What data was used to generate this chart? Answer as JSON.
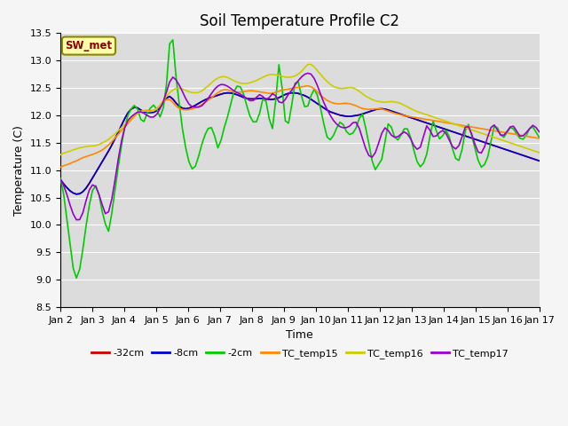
{
  "title": "Soil Temperature Profile C2",
  "xlabel": "Time",
  "ylabel": "Temperature (C)",
  "ylim": [
    8.5,
    13.5
  ],
  "xlim": [
    0,
    15
  ],
  "x_tick_labels": [
    "Jan 2",
    "Jan 3",
    "Jan 4",
    "Jan 5",
    "Jan 6",
    "Jan 7",
    "Jan 8",
    "Jan 9",
    "Jan 10",
    "Jan 11",
    "Jan 12",
    "Jan 13",
    "Jan 14",
    "Jan 15",
    "Jan 16",
    "Jan 17"
  ],
  "yticks": [
    8.5,
    9.0,
    9.5,
    10.0,
    10.5,
    11.0,
    11.5,
    12.0,
    12.5,
    13.0,
    13.5
  ],
  "legend_label": "SW_met",
  "series": {
    "neg32cm": {
      "color": "#cc0000",
      "label": "-32cm",
      "y": [
        10.83,
        10.75,
        10.68,
        10.62,
        10.58,
        10.56,
        10.57,
        10.61,
        10.68,
        10.77,
        10.87,
        10.97,
        11.07,
        11.17,
        11.27,
        11.37,
        11.48,
        11.6,
        11.72,
        11.85,
        11.97,
        12.07,
        12.13,
        12.15,
        12.13,
        12.08,
        12.06,
        12.05,
        12.05,
        12.06,
        12.1,
        12.18,
        12.27,
        12.35,
        12.34,
        12.26,
        12.19,
        12.14,
        12.12,
        12.12,
        12.14,
        12.17,
        12.2,
        12.24,
        12.27,
        12.3,
        12.32,
        12.34,
        12.36,
        12.38,
        12.4,
        12.41,
        12.41,
        12.4,
        12.38,
        12.36,
        12.33,
        12.31,
        12.3,
        12.3,
        12.3,
        12.31,
        12.31,
        12.3,
        12.29,
        12.29,
        12.3,
        12.32,
        12.35,
        12.38,
        12.4,
        12.41,
        12.41,
        12.4,
        12.38,
        12.36,
        12.33,
        12.29,
        12.25,
        12.21,
        12.17,
        12.13,
        12.09,
        12.06,
        12.04,
        12.02,
        12.0,
        11.99,
        11.98,
        11.98,
        11.99,
        12.0,
        12.01,
        12.03,
        12.05,
        12.07,
        12.09,
        12.11,
        12.12,
        12.12,
        12.11,
        12.09,
        12.07,
        12.05,
        12.03,
        12.01,
        11.99,
        11.97,
        11.95,
        11.93,
        11.91,
        11.89,
        11.87,
        11.85,
        11.83,
        11.81,
        11.79,
        11.77,
        11.75,
        11.73,
        11.71,
        11.69,
        11.67,
        11.65,
        11.63,
        11.61,
        11.59,
        11.57,
        11.55,
        11.53,
        11.51,
        11.49,
        11.47,
        11.45,
        11.43,
        11.41,
        11.39,
        11.37,
        11.35,
        11.33,
        11.31,
        11.29,
        11.27,
        11.25,
        11.23,
        11.21,
        11.19,
        11.17
      ]
    },
    "neg8cm": {
      "color": "#0000cc",
      "label": "-8cm",
      "y": [
        10.83,
        10.75,
        10.68,
        10.62,
        10.58,
        10.56,
        10.57,
        10.61,
        10.68,
        10.77,
        10.87,
        10.97,
        11.07,
        11.17,
        11.27,
        11.37,
        11.48,
        11.6,
        11.72,
        11.85,
        11.97,
        12.07,
        12.13,
        12.15,
        12.13,
        12.08,
        12.06,
        12.05,
        12.05,
        12.06,
        12.1,
        12.18,
        12.27,
        12.35,
        12.34,
        12.26,
        12.19,
        12.14,
        12.12,
        12.12,
        12.14,
        12.17,
        12.2,
        12.24,
        12.27,
        12.3,
        12.32,
        12.34,
        12.36,
        12.38,
        12.4,
        12.41,
        12.41,
        12.4,
        12.38,
        12.36,
        12.33,
        12.31,
        12.3,
        12.3,
        12.3,
        12.31,
        12.31,
        12.3,
        12.29,
        12.29,
        12.3,
        12.32,
        12.35,
        12.38,
        12.4,
        12.41,
        12.41,
        12.4,
        12.38,
        12.36,
        12.33,
        12.29,
        12.25,
        12.21,
        12.17,
        12.13,
        12.09,
        12.06,
        12.04,
        12.02,
        12.0,
        11.99,
        11.98,
        11.98,
        11.99,
        12.0,
        12.01,
        12.03,
        12.05,
        12.07,
        12.09,
        12.11,
        12.12,
        12.12,
        12.11,
        12.09,
        12.07,
        12.05,
        12.03,
        12.01,
        11.99,
        11.97,
        11.95,
        11.93,
        11.91,
        11.89,
        11.87,
        11.85,
        11.83,
        11.81,
        11.79,
        11.77,
        11.75,
        11.73,
        11.71,
        11.69,
        11.67,
        11.65,
        11.63,
        11.61,
        11.59,
        11.57,
        11.55,
        11.53,
        11.51,
        11.49,
        11.47,
        11.45,
        11.43,
        11.41,
        11.39,
        11.37,
        11.35,
        11.33,
        11.31,
        11.29,
        11.27,
        11.25,
        11.23,
        11.21,
        11.19,
        11.17
      ]
    },
    "neg2cm": {
      "color": "#00cc00",
      "label": "-2cm",
      "y": [
        10.85,
        10.55,
        10.05,
        9.55,
        9.1,
        9.0,
        9.3,
        9.75,
        10.2,
        10.55,
        10.75,
        10.65,
        10.3,
        10.05,
        9.85,
        10.2,
        10.65,
        11.1,
        11.5,
        11.85,
        12.05,
        12.15,
        12.2,
        12.05,
        11.8,
        12.0,
        12.1,
        12.2,
        12.15,
        11.95,
        12.1,
        12.55,
        13.35,
        13.38,
        12.55,
        12.1,
        11.6,
        11.3,
        11.05,
        11.0,
        11.15,
        11.4,
        11.6,
        11.75,
        11.8,
        11.65,
        11.4,
        11.55,
        11.8,
        12.0,
        12.25,
        12.5,
        12.55,
        12.5,
        12.3,
        12.05,
        11.9,
        11.85,
        11.95,
        12.3,
        12.3,
        11.95,
        11.75,
        12.3,
        13.0,
        12.4,
        11.75,
        11.9,
        12.35,
        12.75,
        12.5,
        12.2,
        12.1,
        12.3,
        12.5,
        12.4,
        12.15,
        11.85,
        11.6,
        11.55,
        11.65,
        11.8,
        11.9,
        11.8,
        11.65,
        11.65,
        11.7,
        11.85,
        12.1,
        11.85,
        11.55,
        11.2,
        11.0,
        11.1,
        11.2,
        11.55,
        11.9,
        11.75,
        11.55,
        11.55,
        11.7,
        11.8,
        11.7,
        11.45,
        11.2,
        11.05,
        11.1,
        11.25,
        11.6,
        11.9,
        11.7,
        11.55,
        11.65,
        11.75,
        11.55,
        11.3,
        11.15,
        11.2,
        11.6,
        11.9,
        11.7,
        11.45,
        11.2,
        11.05,
        11.1,
        11.25,
        11.55,
        11.85,
        11.75,
        11.6,
        11.6,
        11.75,
        11.8,
        11.7,
        11.6,
        11.55,
        11.6,
        11.75,
        11.8,
        11.7,
        11.6
      ]
    },
    "TC_temp15": {
      "color": "#ff8800",
      "label": "TC_temp15",
      "y": [
        11.05,
        11.08,
        11.1,
        11.12,
        11.15,
        11.17,
        11.2,
        11.23,
        11.25,
        11.27,
        11.29,
        11.31,
        11.34,
        11.37,
        11.42,
        11.47,
        11.53,
        11.6,
        11.67,
        11.74,
        11.8,
        11.87,
        11.94,
        12.0,
        12.05,
        12.08,
        12.09,
        12.09,
        12.08,
        12.09,
        12.13,
        12.2,
        12.27,
        12.3,
        12.28,
        12.2,
        12.14,
        12.11,
        12.1,
        12.1,
        12.11,
        12.13,
        12.15,
        12.18,
        12.22,
        12.26,
        12.3,
        12.35,
        12.4,
        12.44,
        12.47,
        12.47,
        12.45,
        12.43,
        12.42,
        12.42,
        12.43,
        12.44,
        12.45,
        12.45,
        12.44,
        12.43,
        12.42,
        12.41,
        12.4,
        12.4,
        12.42,
        12.44,
        12.46,
        12.47,
        12.48,
        12.49,
        12.5,
        12.51,
        12.52,
        12.53,
        12.54,
        12.52,
        12.48,
        12.42,
        12.36,
        12.31,
        12.27,
        12.24,
        12.22,
        12.21,
        12.21,
        12.22,
        12.22,
        12.21,
        12.19,
        12.17,
        12.14,
        12.12,
        12.11,
        12.11,
        12.11,
        12.12,
        12.12,
        12.11,
        12.09,
        12.07,
        12.05,
        12.03,
        12.02,
        12.0,
        11.99,
        11.98,
        11.97,
        11.96,
        11.95,
        11.94,
        11.93,
        11.92,
        11.91,
        11.9,
        11.89,
        11.88,
        11.87,
        11.86,
        11.85,
        11.84,
        11.83,
        11.82,
        11.81,
        11.8,
        11.79,
        11.78,
        11.77,
        11.76,
        11.75,
        11.74,
        11.73,
        11.72,
        11.71,
        11.7,
        11.69,
        11.68,
        11.67,
        11.66,
        11.65,
        11.64,
        11.63,
        11.62,
        11.61,
        11.6,
        11.59,
        11.58
      ]
    },
    "TC_temp16": {
      "color": "#cccc00",
      "label": "TC_temp16",
      "y": [
        11.28,
        11.31,
        11.33,
        11.35,
        11.37,
        11.39,
        11.41,
        11.42,
        11.43,
        11.44,
        11.44,
        11.45,
        11.47,
        11.5,
        11.53,
        11.57,
        11.62,
        11.67,
        11.73,
        11.79,
        11.85,
        11.91,
        11.97,
        12.02,
        12.06,
        12.08,
        12.08,
        12.07,
        12.07,
        12.09,
        12.15,
        12.22,
        12.3,
        12.38,
        12.44,
        12.48,
        12.5,
        12.49,
        12.47,
        12.44,
        12.42,
        12.41,
        12.41,
        12.43,
        12.47,
        12.52,
        12.57,
        12.63,
        12.67,
        12.7,
        12.71,
        12.7,
        12.67,
        12.64,
        12.61,
        12.59,
        12.58,
        12.58,
        12.59,
        12.61,
        12.63,
        12.66,
        12.69,
        12.72,
        12.74,
        12.75,
        12.74,
        12.73,
        12.71,
        12.7,
        12.69,
        12.7,
        12.72,
        12.75,
        12.8,
        12.87,
        12.93,
        12.93,
        12.88,
        12.81,
        12.74,
        12.67,
        12.61,
        12.56,
        12.52,
        12.5,
        12.49,
        12.49,
        12.5,
        12.51,
        12.5,
        12.47,
        12.43,
        12.38,
        12.34,
        12.31,
        12.28,
        12.26,
        12.25,
        12.24,
        12.24,
        12.25,
        12.25,
        12.24,
        12.23,
        12.2,
        12.17,
        12.14,
        12.11,
        12.08,
        12.06,
        12.04,
        12.02,
        12.0,
        11.98,
        11.96,
        11.94,
        11.92,
        11.9,
        11.88,
        11.86,
        11.84,
        11.82,
        11.8,
        11.78,
        11.76,
        11.74,
        11.72,
        11.7,
        11.68,
        11.66,
        11.64,
        11.62,
        11.6,
        11.58,
        11.56,
        11.54,
        11.52,
        11.5,
        11.48,
        11.46,
        11.44,
        11.42,
        11.4,
        11.38,
        11.36,
        11.34,
        11.32
      ]
    },
    "TC_temp17": {
      "color": "#9900cc",
      "label": "TC_temp17",
      "y": [
        10.83,
        10.72,
        10.55,
        10.35,
        10.18,
        10.08,
        10.1,
        10.25,
        10.5,
        10.68,
        10.75,
        10.68,
        10.5,
        10.3,
        10.15,
        10.3,
        10.6,
        11.0,
        11.38,
        11.68,
        11.87,
        11.95,
        12.0,
        12.05,
        12.07,
        12.05,
        12.01,
        11.97,
        11.96,
        12.0,
        12.1,
        12.22,
        12.4,
        12.6,
        12.7,
        12.65,
        12.55,
        12.43,
        12.3,
        12.2,
        12.15,
        12.15,
        12.15,
        12.18,
        12.25,
        12.33,
        12.42,
        12.5,
        12.55,
        12.57,
        12.55,
        12.52,
        12.47,
        12.43,
        12.4,
        12.37,
        12.33,
        12.28,
        12.25,
        12.3,
        12.38,
        12.37,
        12.28,
        12.3,
        12.4,
        12.38,
        12.25,
        12.22,
        12.28,
        12.38,
        12.45,
        12.55,
        12.63,
        12.7,
        12.75,
        12.77,
        12.75,
        12.66,
        12.52,
        12.35,
        12.2,
        12.08,
        11.97,
        11.88,
        11.82,
        11.78,
        11.77,
        11.78,
        11.82,
        11.9,
        11.85,
        11.68,
        11.47,
        11.3,
        11.22,
        11.26,
        11.42,
        11.62,
        11.78,
        11.75,
        11.65,
        11.6,
        11.6,
        11.65,
        11.7,
        11.67,
        11.58,
        11.45,
        11.38,
        11.42,
        11.62,
        11.82,
        11.72,
        11.6,
        11.63,
        11.7,
        11.73,
        11.65,
        11.52,
        11.4,
        11.38,
        11.48,
        11.68,
        11.85,
        11.75,
        11.58,
        11.38,
        11.28,
        11.35,
        11.52,
        11.73,
        11.85,
        11.78,
        11.65,
        11.62,
        11.68,
        11.78,
        11.82,
        11.73,
        11.62,
        11.62,
        11.68,
        11.75,
        11.82,
        11.78,
        11.7
      ]
    }
  },
  "background_color": "#dcdcdc",
  "grid_color": "#ffffff",
  "fig_bg_color": "#f5f5f5",
  "title_fontsize": 12,
  "axis_fontsize": 9,
  "tick_fontsize": 8,
  "linewidth": 1.2
}
